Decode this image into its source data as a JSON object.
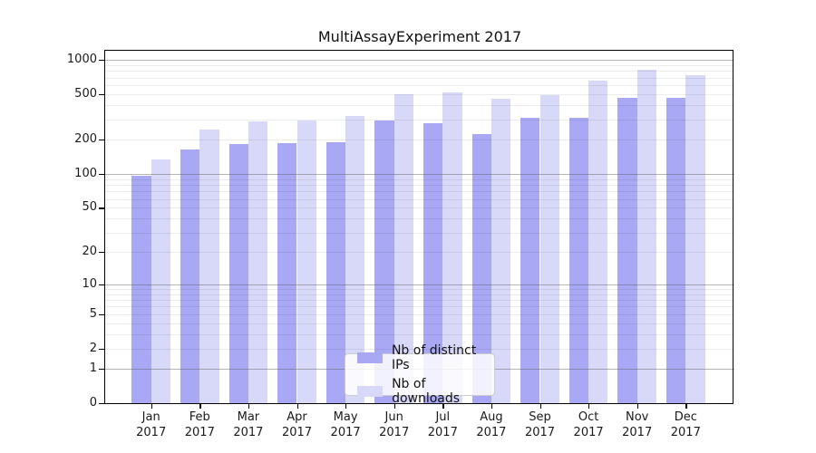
{
  "title": "MultiAssayExperiment 2017",
  "chart_data": {
    "type": "bar",
    "title": "MultiAssayExperiment 2017",
    "categories": [
      "Jan",
      "Feb",
      "Mar",
      "Apr",
      "May",
      "Jun",
      "Jul",
      "Aug",
      "Sep",
      "Oct",
      "Nov",
      "Dec"
    ],
    "year": "2017",
    "series": [
      {
        "name": "Nb of distinct IPs",
        "color": "#a8a8f4",
        "values": [
          97,
          163,
          183,
          185,
          190,
          297,
          278,
          223,
          309,
          311,
          462,
          461
        ]
      },
      {
        "name": "Nb of downloads",
        "color": "#d8d8f9",
        "values": [
          134,
          243,
          287,
          293,
          322,
          498,
          523,
          455,
          489,
          654,
          815,
          728
        ]
      }
    ],
    "yscale": "log1p",
    "ylim": [
      0,
      1200
    ],
    "yticks": [
      "0",
      "1",
      "2",
      "5",
      "10",
      "20",
      "50",
      "100",
      "200",
      "500",
      "1000"
    ],
    "grid": "minor lines at 2-9,20-90,200-900; darker lines at 1,10,100,1000",
    "legend_position": "lower center"
  },
  "colors": {
    "background": "#ffffff",
    "axis": "#000000",
    "major_grid": "rgba(90,90,90,0.45)",
    "minor_grid": "rgba(0,0,0,0.075)",
    "ips_bar": "#a8a8f4",
    "downloads_bar": "#d8d8f9"
  }
}
